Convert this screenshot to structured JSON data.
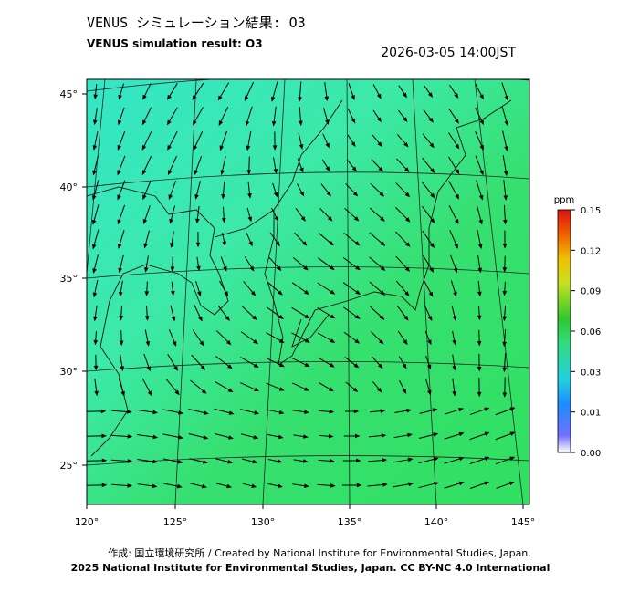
{
  "header": {
    "title": "VENUS シミュレーション結果: O3",
    "subtitle": "VENUS simulation result: O3",
    "datetime": "2026-03-05 14:00JST"
  },
  "map": {
    "lat_labels": [
      "45°",
      "40°",
      "35°",
      "30°",
      "25°"
    ],
    "lon_labels": [
      "120°",
      "125°",
      "130°",
      "135°",
      "140°",
      "145°"
    ]
  },
  "colorbar": {
    "unit": "ppm",
    "labels": [
      "0.15",
      "0.12",
      "0.09",
      "0.06",
      "0.03",
      "0.01",
      "0.00"
    ]
  },
  "footer": {
    "line1": "作成: 国立環境研究所 / Created by National Institute for Environmental Studies, Japan.",
    "line2": "2025 National Institute for Environmental Studies, Japan. CC BY-NC 4.0 International"
  }
}
